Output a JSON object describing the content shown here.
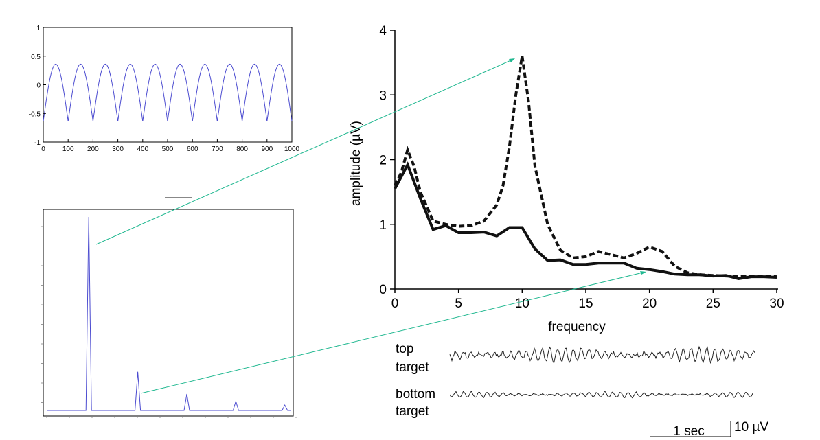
{
  "chart_data": [
    {
      "type": "line",
      "title": "",
      "xlabel": "",
      "ylabel": "",
      "xlim": [
        0,
        1000
      ],
      "ylim": [
        -1,
        1
      ],
      "xticks": [
        0,
        100,
        200,
        300,
        400,
        500,
        600,
        700,
        800,
        900,
        1000
      ],
      "yticks": [
        1,
        0.5,
        0,
        -0.5,
        -1
      ],
      "ytick_labels": [
        "1",
        "0.5",
        "0",
        "-0.5",
        "-1"
      ],
      "series": [
        {
          "period": 100,
          "peak": 0.36,
          "trough": -0.64,
          "phase": 50,
          "color": "#4b4bd0"
        }
      ]
    },
    {
      "type": "line",
      "title": "",
      "xlabel": "",
      "ylabel": "",
      "peaks": [
        {
          "x": 10,
          "height": 1.0
        },
        {
          "x": 20,
          "height": 0.2
        },
        {
          "x": 30,
          "height": 0.085
        },
        {
          "x": 40,
          "height": 0.048
        },
        {
          "x": 50,
          "height": 0.028
        }
      ],
      "xlim": [
        1,
        52
      ],
      "series_color": "#4b4bd0"
    },
    {
      "type": "line",
      "title": "",
      "xlabel": "frequency",
      "ylabel": "amplitude (µV)",
      "xlim": [
        0,
        30
      ],
      "ylim": [
        0,
        4
      ],
      "xticks": [
        0,
        5,
        10,
        15,
        20,
        25,
        30
      ],
      "yticks": [
        0,
        1,
        2,
        3,
        4
      ],
      "series": [
        {
          "style": "dashed",
          "points": [
            [
              0,
              1.6
            ],
            [
              0.5,
              1.8
            ],
            [
              1,
              2.15
            ],
            [
              1.5,
              1.9
            ],
            [
              2,
              1.5
            ],
            [
              3,
              1.05
            ],
            [
              4,
              1.0
            ],
            [
              5,
              0.97
            ],
            [
              6,
              0.98
            ],
            [
              7,
              1.05
            ],
            [
              8,
              1.3
            ],
            [
              8.5,
              1.6
            ],
            [
              9,
              2.2
            ],
            [
              9.5,
              3.0
            ],
            [
              10,
              3.6
            ],
            [
              10.5,
              2.9
            ],
            [
              11,
              1.9
            ],
            [
              12,
              1.0
            ],
            [
              13,
              0.6
            ],
            [
              14,
              0.48
            ],
            [
              15,
              0.5
            ],
            [
              16,
              0.58
            ],
            [
              17,
              0.53
            ],
            [
              18,
              0.48
            ],
            [
              19,
              0.55
            ],
            [
              20,
              0.65
            ],
            [
              21,
              0.58
            ],
            [
              22,
              0.35
            ],
            [
              23,
              0.25
            ],
            [
              24,
              0.22
            ],
            [
              25,
              0.21
            ],
            [
              26,
              0.2
            ],
            [
              27,
              0.19
            ],
            [
              28,
              0.2
            ],
            [
              29,
              0.2
            ],
            [
              30,
              0.19
            ]
          ]
        },
        {
          "style": "solid",
          "points": [
            [
              0,
              1.55
            ],
            [
              1,
              1.92
            ],
            [
              2,
              1.4
            ],
            [
              3,
              0.92
            ],
            [
              4,
              0.98
            ],
            [
              5,
              0.87
            ],
            [
              6,
              0.87
            ],
            [
              7,
              0.88
            ],
            [
              8,
              0.82
            ],
            [
              9,
              0.95
            ],
            [
              10,
              0.95
            ],
            [
              11,
              0.62
            ],
            [
              12,
              0.44
            ],
            [
              13,
              0.45
            ],
            [
              14,
              0.38
            ],
            [
              15,
              0.38
            ],
            [
              16,
              0.4
            ],
            [
              17,
              0.4
            ],
            [
              18,
              0.4
            ],
            [
              19,
              0.32
            ],
            [
              20,
              0.3
            ],
            [
              21,
              0.27
            ],
            [
              22,
              0.23
            ],
            [
              23,
              0.22
            ],
            [
              24,
              0.22
            ],
            [
              25,
              0.2
            ],
            [
              26,
              0.21
            ],
            [
              27,
              0.16
            ],
            [
              28,
              0.19
            ],
            [
              29,
              0.19
            ],
            [
              30,
              0.18
            ]
          ]
        }
      ]
    }
  ],
  "eeg": {
    "top_label_1": "top",
    "top_label_2": "target",
    "bottom_label_1": "bottom",
    "bottom_label_2": "target",
    "time_scale": "1 sec",
    "amp_scale": "10 µV"
  },
  "arrow_color": "#20b890"
}
